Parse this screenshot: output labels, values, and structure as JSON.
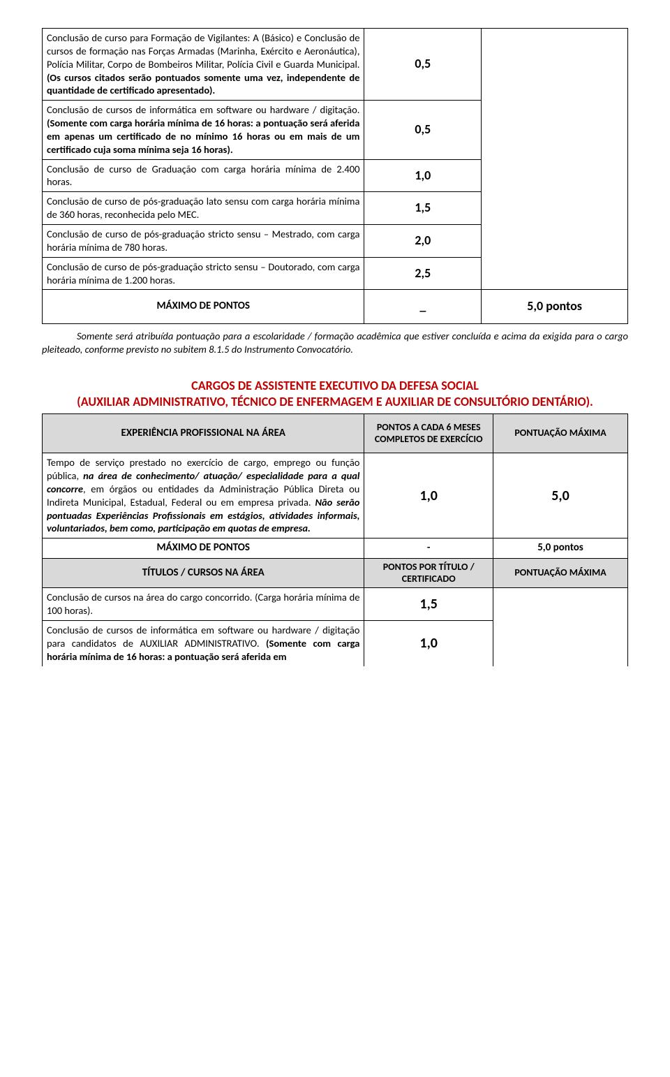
{
  "table1": {
    "rows": [
      "Conclusão de curso para Formação de Vigilantes: A (Básico) e Conclusão de cursos de formação nas Forças Armadas (Marinha, Exército e Aeronáutica), Polícia Militar, Corpo de Bombeiros Militar, Polícia Civil e Guarda Municipal. <b>(Os cursos citados serão pontuados somente uma vez, independente de quantidade de certificado apresentado).</b>",
      "Conclusão de cursos de informática em software ou hardware / digitação. <b>(Somente com carga horária mínima de 16 horas: a pontuação será aferida em apenas um certificado de no mínimo 16 horas ou em mais de um certificado cuja soma mínima seja 16 horas).</b>",
      "Conclusão de curso de Graduação com carga horária mínima de 2.400 horas.",
      "Conclusão de curso de pós-graduação lato sensu com carga horária mínima de 360 horas, reconhecida pelo MEC.",
      "Conclusão de curso de pós-graduação stricto sensu – Mestrado, com carga horária mínima de 780 horas.",
      "Conclusão de curso de pós-graduação stricto sensu – Doutorado, com carga horária mínima de 1.200 horas."
    ],
    "vals": [
      "0,5",
      "0,5",
      "1,0",
      "1,5",
      "2,0",
      "2,5"
    ],
    "max_label": "MÁXIMO DE PONTOS",
    "max_dash": "_",
    "max_pts": "5,0 pontos"
  },
  "note": "Somente será atribuída pontuação para a escolaridade / formação acadêmica que estiver concluída e acima da exigida para o cargo pleiteado, conforme previsto no subitem 8.1.5 do Instrumento Convocatório.",
  "section_title_line1": "CARGOS DE ASSISTENTE EXECUTIVO DA DEFESA SOCIAL",
  "section_title_line2": "(AUXILIAR ADMINISTRATIVO, TÉCNICO DE ENFERMAGEM E AUXILIAR DE CONSULTÓRIO DENTÁRIO).",
  "table2": {
    "hdr1_c1": "EXPERIÊNCIA PROFISSIONAL NA ÁREA",
    "hdr1_c2": "PONTOS A CADA 6 MESES COMPLETOS DE EXERCÍCIO",
    "hdr1_c3": "PONTUAÇÃO MÁXIMA",
    "row1": "Tempo de serviço prestado no exercício de cargo, emprego ou função pública, <b><i>na área de conhecimento/ atuação/ especialidade para a qual concorre</i></b>, em órgãos ou entidades da Administração Pública Direta ou Indireta Municipal, Estadual, Federal ou em empresa privada. <b><i>Não serão pontuadas Experiências Profissionais em estágios, atividades informais, voluntariados, bem como, participação em quotas de empresa.</i></b>",
    "row1_v1": "1,0",
    "row1_v2": "5,0",
    "max_label": "MÁXIMO DE PONTOS",
    "max_dash": "-",
    "max_pts": "5,0 pontos",
    "hdr2_c1": "TÍTULOS / CURSOS NA ÁREA",
    "hdr2_c2": "PONTOS POR TÍTULO / CERTIFICADO",
    "hdr2_c3": "PONTUAÇÃO MÁXIMA",
    "row2": "Conclusão de cursos na área do cargo concorrido. (Carga horária mínima de 100 horas).",
    "row2_v": "1,5",
    "row3": "Conclusão de cursos de informática em software ou hardware / digitação para candidatos de AUXILIAR ADMINISTRATIVO. <b>(Somente com carga horária mínima de 16 horas: a pontuação será aferida em</b>",
    "row3_v": "1,0"
  }
}
